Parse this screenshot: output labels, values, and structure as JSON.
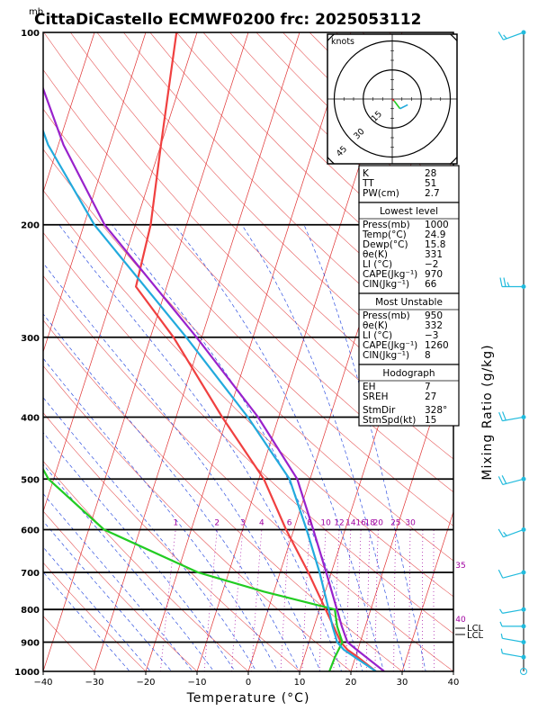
{
  "title": "CittaDiCastello ECMWF0200  frc: 2025053112",
  "units": {
    "pressure": "mb"
  },
  "axes": {
    "xlabel": "Temperature (°C)",
    "right_label": "Mixing Ratio (g/kg)",
    "x_ticks": [
      "−40",
      "−30",
      "−20",
      "−10",
      "0",
      "10",
      "20",
      "30",
      "40"
    ],
    "p_ticks": [
      "100",
      "200",
      "300",
      "400",
      "500",
      "600",
      "700",
      "800",
      "900",
      "1000"
    ]
  },
  "hodograph": {
    "units": "knots",
    "ring_labels": [
      "15",
      "30",
      "45"
    ]
  },
  "mixing_ratio_labels": [
    "1",
    "2",
    "3",
    "4",
    "6",
    "8",
    "10",
    "12",
    "14",
    "16",
    "18",
    "20",
    "25",
    "30",
    "35",
    "40"
  ],
  "level_markers": [
    "LCL",
    "LCL"
  ],
  "indices": {
    "general": [
      {
        "label": "K",
        "value": "28"
      },
      {
        "label": "TT",
        "value": "51"
      },
      {
        "label": "PW(cm)",
        "value": "2.7"
      }
    ],
    "lowest_level": {
      "header": "Lowest level",
      "rows": [
        {
          "label": "Press(mb)",
          "value": "1000"
        },
        {
          "label": "Temp(°C)",
          "value": "24.9"
        },
        {
          "label": "Dewp(°C)",
          "value": "15.8"
        },
        {
          "label": "θe(K)",
          "value": "331"
        },
        {
          "label": "LI (°C)",
          "value": "−2"
        },
        {
          "label": "CAPE(Jkg⁻¹)",
          "value": "970"
        },
        {
          "label": "CIN(Jkg⁻¹)",
          "value": "66"
        }
      ]
    },
    "most_unstable": {
      "header": "Most Unstable",
      "rows": [
        {
          "label": "Press(mb)",
          "value": "950"
        },
        {
          "label": "θe(K)",
          "value": "332"
        },
        {
          "label": "LI (°C)",
          "value": "−3"
        },
        {
          "label": "CAPE(Jkg⁻¹)",
          "value": "1260"
        },
        {
          "label": "CIN(Jkg⁻¹)",
          "value": "8"
        }
      ]
    },
    "hodograph_box": {
      "header": "Hodograph",
      "rows": [
        {
          "label": "EH",
          "value": "7"
        },
        {
          "label": "SREH",
          "value": "27"
        },
        {
          "label": "StmDir",
          "value": "328°"
        },
        {
          "label": "StmSpd(kt)",
          "value": "15"
        }
      ]
    }
  },
  "colors": {
    "temperature": "#f04040",
    "dewpoint": "#22cc22",
    "parcel": "#22aadd",
    "virtual_temp": "#9922cc",
    "isotherm": "#e03030",
    "dry_adiabat": "#e03030",
    "moist_adiabat": "#3050e0",
    "mixing_ratio": "#a000a0",
    "wind_barb": "#22bbdd"
  },
  "chart_data": {
    "type": "skew-t",
    "xlim": [
      -40,
      40
    ],
    "plim": [
      1000,
      100
    ],
    "series": [
      {
        "name": "Temperature",
        "points": [
          [
            1000,
            24.9
          ],
          [
            950,
            20.5
          ],
          [
            925,
            18
          ],
          [
            900,
            16.2
          ],
          [
            850,
            13.8
          ],
          [
            800,
            11.2
          ],
          [
            700,
            5.5
          ],
          [
            600,
            -1.5
          ],
          [
            500,
            -9
          ],
          [
            400,
            -21
          ],
          [
            300,
            -35.5
          ],
          [
            250,
            -46
          ],
          [
            200,
            -47
          ],
          [
            150,
            -50
          ],
          [
            100,
            -54
          ]
        ]
      },
      {
        "name": "Dewpoint",
        "points": [
          [
            1000,
            15.8
          ],
          [
            950,
            16
          ],
          [
            900,
            16.5
          ],
          [
            850,
            14.5
          ],
          [
            800,
            13
          ],
          [
            750,
            -2
          ],
          [
            700,
            -16
          ],
          [
            600,
            -37
          ],
          [
            500,
            -51
          ],
          [
            450,
            -56
          ],
          [
            400,
            -62
          ],
          [
            300,
            -79
          ],
          [
            200,
            -96
          ],
          [
            150,
            -106
          ],
          [
            100,
            -120
          ]
        ]
      },
      {
        "name": "Parcel",
        "points": [
          [
            1000,
            24.9
          ],
          [
            925,
            17.3
          ],
          [
            900,
            15.5
          ],
          [
            850,
            13.6
          ],
          [
            800,
            11.8
          ],
          [
            700,
            7.7
          ],
          [
            600,
            2.5
          ],
          [
            500,
            -4
          ],
          [
            400,
            -16
          ],
          [
            300,
            -33
          ],
          [
            200,
            -58
          ],
          [
            150,
            -72
          ],
          [
            100,
            -87
          ]
        ]
      },
      {
        "name": "Virtual temperature",
        "points": [
          [
            1000,
            26.5
          ],
          [
            925,
            19.8
          ],
          [
            900,
            17.5
          ],
          [
            850,
            15.4
          ],
          [
            800,
            13.4
          ],
          [
            700,
            9
          ],
          [
            600,
            3.8
          ],
          [
            500,
            -2.5
          ],
          [
            400,
            -14
          ],
          [
            300,
            -31
          ],
          [
            200,
            -56
          ],
          [
            150,
            -69
          ],
          [
            100,
            -84
          ]
        ]
      }
    ],
    "wind_barbs_kt": [
      {
        "p": 100,
        "dir": 250,
        "spd": 15
      },
      {
        "p": 250,
        "dir": 270,
        "spd": 25
      },
      {
        "p": 400,
        "dir": 260,
        "spd": 20
      },
      {
        "p": 500,
        "dir": 255,
        "spd": 20
      },
      {
        "p": 600,
        "dir": 250,
        "spd": 15
      },
      {
        "p": 700,
        "dir": 255,
        "spd": 10
      },
      {
        "p": 800,
        "dir": 260,
        "spd": 5
      },
      {
        "p": 850,
        "dir": 270,
        "spd": 5
      },
      {
        "p": 900,
        "dir": 280,
        "spd": 5
      },
      {
        "p": 950,
        "dir": 280,
        "spd": 5
      },
      {
        "p": 1000,
        "dir": 0,
        "spd": 0
      }
    ],
    "hodograph_points_kt": [
      [
        0,
        0
      ],
      [
        1,
        -1
      ],
      [
        4,
        -5
      ],
      [
        8,
        -3
      ]
    ]
  }
}
